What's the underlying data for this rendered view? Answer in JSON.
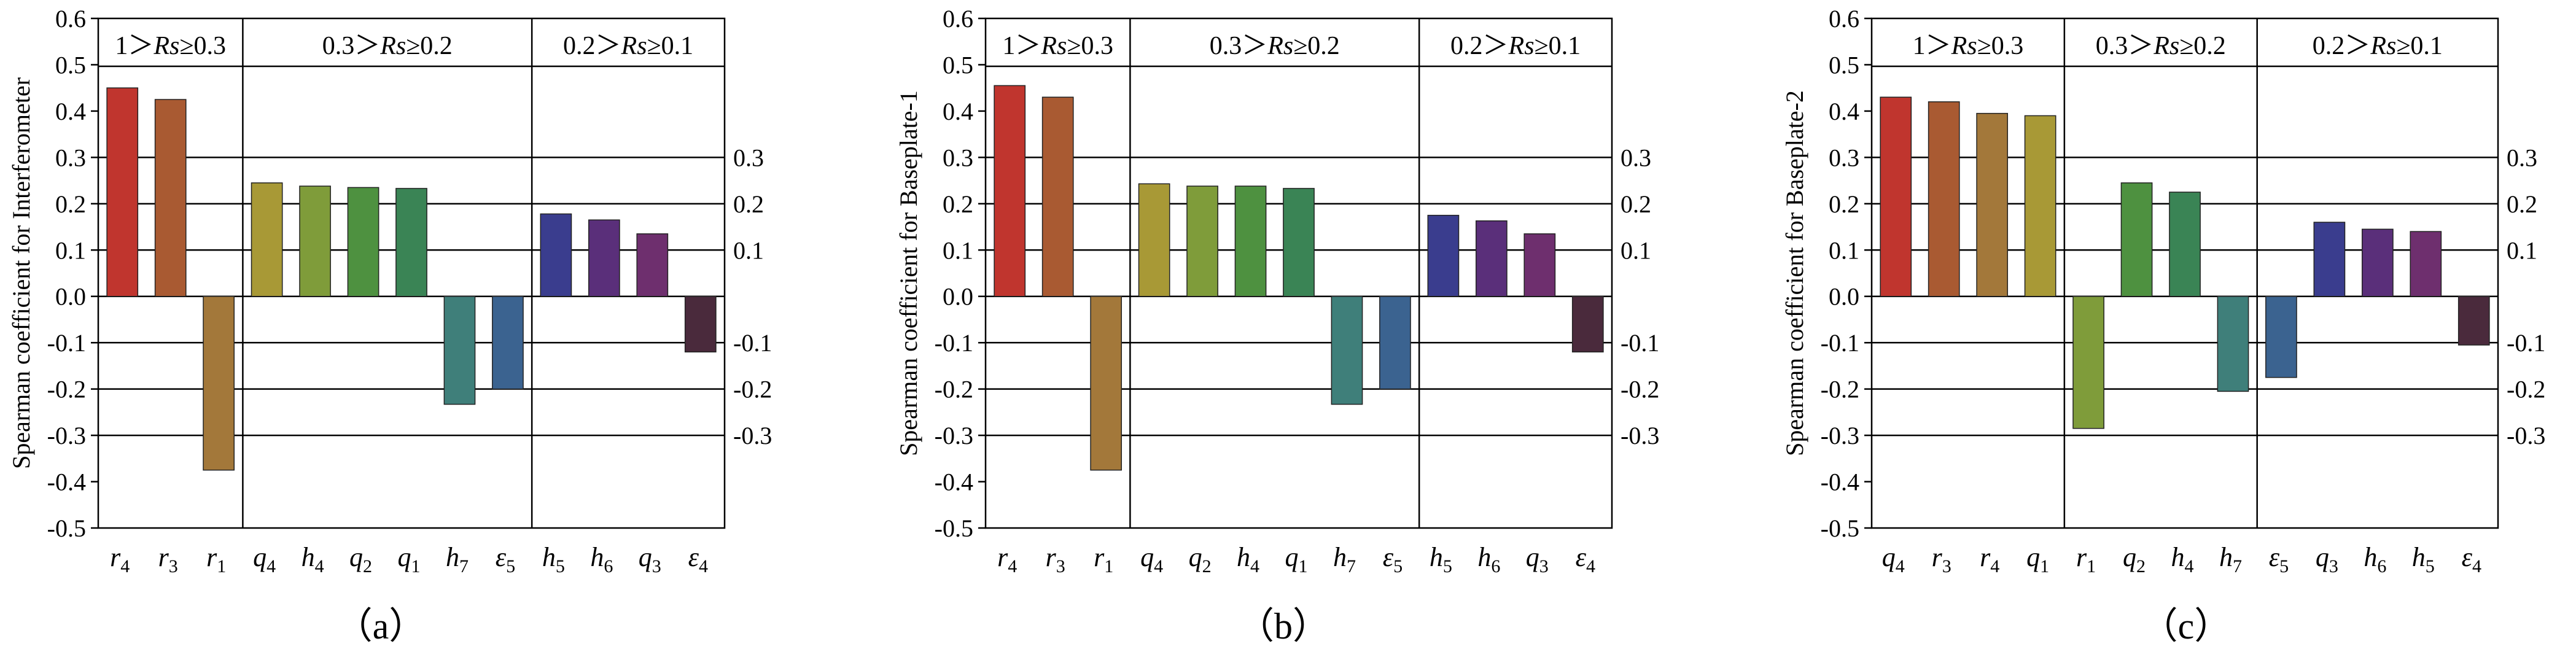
{
  "chart_data": [
    {
      "type": "bar",
      "ylabel": "Spearman coefficient for Interferometer",
      "caption": "（a）",
      "ylim": [
        -0.5,
        0.6
      ],
      "yticks": [
        "0.6",
        "0.5",
        "0.4",
        "0.3",
        "0.2",
        "0.1",
        "0.0",
        "-0.1",
        "-0.2",
        "-0.3",
        "-0.4",
        "-0.5"
      ],
      "right_ticks": [
        "0.3",
        "0.2",
        "0.1",
        "-0.1",
        "-0.2",
        "-0.3"
      ],
      "grid_lines": [
        0.3,
        0.2,
        0.1,
        0.0,
        -0.1,
        -0.2,
        -0.3
      ],
      "groups": [
        {
          "label_pre": "1＞",
          "label_var": "Rs",
          "label_post": "≥0.3",
          "count": 3
        },
        {
          "label_pre": "0.3＞",
          "label_var": "Rs",
          "label_post": "≥0.2",
          "count": 6
        },
        {
          "label_pre": "0.2＞",
          "label_var": "Rs",
          "label_post": "≥0.1",
          "count": 4
        }
      ],
      "categories": [
        {
          "base": "r",
          "sub": "4"
        },
        {
          "base": "r",
          "sub": "3"
        },
        {
          "base": "r",
          "sub": "1"
        },
        {
          "base": "q",
          "sub": "4"
        },
        {
          "base": "h",
          "sub": "4"
        },
        {
          "base": "q",
          "sub": "2"
        },
        {
          "base": "q",
          "sub": "1"
        },
        {
          "base": "h",
          "sub": "7"
        },
        {
          "base": "ε",
          "sub": "5"
        },
        {
          "base": "h",
          "sub": "5"
        },
        {
          "base": "h",
          "sub": "6"
        },
        {
          "base": "q",
          "sub": "3"
        },
        {
          "base": "ε",
          "sub": "4"
        }
      ],
      "values": [
        0.45,
        0.425,
        -0.375,
        0.245,
        0.238,
        0.235,
        0.233,
        -0.233,
        -0.2,
        0.178,
        0.165,
        0.135,
        -0.12
      ],
      "colors": [
        "#c0352e",
        "#a95a32",
        "#a3783a",
        "#a89936",
        "#7f9c3a",
        "#4e9140",
        "#3a8455",
        "#3f7f7a",
        "#3b6390",
        "#3a3d8e",
        "#5a2f7a",
        "#6e2f6e",
        "#4a2a3c"
      ]
    },
    {
      "type": "bar",
      "ylabel": "Spearman coefficient for Baseplate-1",
      "caption": "（b）",
      "ylim": [
        -0.5,
        0.6
      ],
      "yticks": [
        "0.6",
        "0.5",
        "0.4",
        "0.3",
        "0.2",
        "0.1",
        "0.0",
        "-0.1",
        "-0.2",
        "-0.3",
        "-0.4",
        "-0.5"
      ],
      "right_ticks": [
        "0.3",
        "0.2",
        "0.1",
        "-0.1",
        "-0.2",
        "-0.3"
      ],
      "grid_lines": [
        0.3,
        0.2,
        0.1,
        0.0,
        -0.1,
        -0.2,
        -0.3
      ],
      "groups": [
        {
          "label_pre": "1＞",
          "label_var": "Rs",
          "label_post": "≥0.3",
          "count": 3
        },
        {
          "label_pre": "0.3＞",
          "label_var": "Rs",
          "label_post": "≥0.2",
          "count": 6
        },
        {
          "label_pre": "0.2＞",
          "label_var": "Rs",
          "label_post": "≥0.1",
          "count": 4
        }
      ],
      "categories": [
        {
          "base": "r",
          "sub": "4"
        },
        {
          "base": "r",
          "sub": "3"
        },
        {
          "base": "r",
          "sub": "1"
        },
        {
          "base": "q",
          "sub": "4"
        },
        {
          "base": "q",
          "sub": "2"
        },
        {
          "base": "h",
          "sub": "4"
        },
        {
          "base": "q",
          "sub": "1"
        },
        {
          "base": "h",
          "sub": "7"
        },
        {
          "base": "ε",
          "sub": "5"
        },
        {
          "base": "h",
          "sub": "5"
        },
        {
          "base": "h",
          "sub": "6"
        },
        {
          "base": "q",
          "sub": "3"
        },
        {
          "base": "ε",
          "sub": "4"
        }
      ],
      "values": [
        0.455,
        0.43,
        -0.375,
        0.243,
        0.238,
        0.238,
        0.233,
        -0.233,
        -0.2,
        0.175,
        0.163,
        0.135,
        -0.12
      ],
      "colors": [
        "#c0352e",
        "#a95a32",
        "#a3783a",
        "#a89936",
        "#7f9c3a",
        "#4e9140",
        "#3a8455",
        "#3f7f7a",
        "#3b6390",
        "#3a3d8e",
        "#5a2f7a",
        "#6e2f6e",
        "#4a2a3c"
      ]
    },
    {
      "type": "bar",
      "ylabel": "Spearman coefficient for Baseplate-2",
      "caption": "（c）",
      "ylim": [
        -0.5,
        0.6
      ],
      "yticks": [
        "0.6",
        "0.5",
        "0.4",
        "0.3",
        "0.2",
        "0.1",
        "0.0",
        "-0.1",
        "-0.2",
        "-0.3",
        "-0.4",
        "-0.5"
      ],
      "right_ticks": [
        "0.3",
        "0.2",
        "0.1",
        "-0.1",
        "-0.2",
        "-0.3"
      ],
      "grid_lines": [
        0.3,
        0.2,
        0.1,
        0.0,
        -0.1,
        -0.2,
        -0.3
      ],
      "groups": [
        {
          "label_pre": "1＞",
          "label_var": "Rs",
          "label_post": "≥0.3",
          "count": 4
        },
        {
          "label_pre": "0.3＞",
          "label_var": "Rs",
          "label_post": "≥0.2",
          "count": 4
        },
        {
          "label_pre": "0.2＞",
          "label_var": "Rs",
          "label_post": "≥0.1",
          "count": 5
        }
      ],
      "categories": [
        {
          "base": "q",
          "sub": "4"
        },
        {
          "base": "r",
          "sub": "3"
        },
        {
          "base": "r",
          "sub": "4"
        },
        {
          "base": "q",
          "sub": "1"
        },
        {
          "base": "r",
          "sub": "1"
        },
        {
          "base": "q",
          "sub": "2"
        },
        {
          "base": "h",
          "sub": "4"
        },
        {
          "base": "h",
          "sub": "7"
        },
        {
          "base": "ε",
          "sub": "5"
        },
        {
          "base": "q",
          "sub": "3"
        },
        {
          "base": "h",
          "sub": "6"
        },
        {
          "base": "h",
          "sub": "5"
        },
        {
          "base": "ε",
          "sub": "4"
        }
      ],
      "values": [
        0.43,
        0.42,
        0.395,
        0.39,
        -0.285,
        0.245,
        0.225,
        -0.205,
        -0.175,
        0.16,
        0.145,
        0.14,
        -0.105
      ],
      "colors": [
        "#c0352e",
        "#a95a32",
        "#a3783a",
        "#a89936",
        "#7f9c3a",
        "#4e9140",
        "#3a8455",
        "#3f7f7a",
        "#3b6390",
        "#3a3d8e",
        "#5a2f7a",
        "#6e2f6e",
        "#4a2a3c"
      ]
    }
  ]
}
